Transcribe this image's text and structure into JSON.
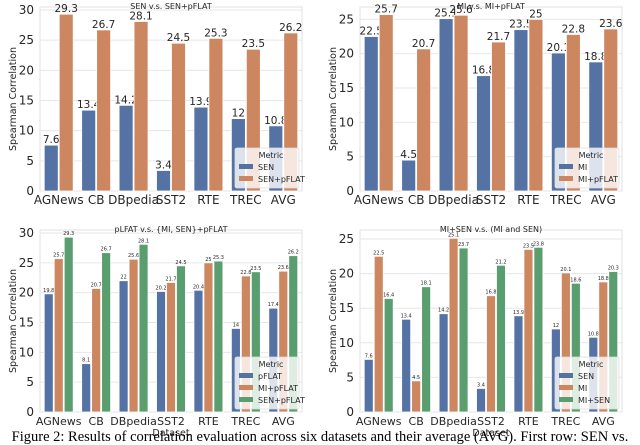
{
  "caption": "Figure 2: Results of correlation evaluation across six datasets and their average (AVG). First row: SEN vs.",
  "colors": {
    "blue": "#5572a5",
    "orange": "#cc8660",
    "green": "#5a9e6f",
    "grid": "#e6e6e6",
    "frame": "#e0e0e0"
  },
  "chart_data": [
    {
      "type": "bar",
      "title": "SEN v.s. SEN+pFLAT",
      "xlabel": "",
      "ylabel": "Spearman Correlation",
      "categories": [
        "AGNews",
        "CB",
        "DBpedia",
        "SST2",
        "RTE",
        "TREC",
        "AVG"
      ],
      "ylim": [
        0,
        30.5
      ],
      "yticks": [
        0,
        5,
        10,
        15,
        20,
        25,
        30
      ],
      "grid": true,
      "legend": {
        "title": "Metric",
        "position": "lower-right"
      },
      "series": [
        {
          "name": "SEN",
          "color": "#5572a5",
          "values": [
            7.6,
            13.4,
            14.2,
            3.4,
            13.9,
            12,
            10.8
          ]
        },
        {
          "name": "SEN+pFLAT",
          "color": "#cc8660",
          "values": [
            29.3,
            26.7,
            28.1,
            24.5,
            25.3,
            23.5,
            26.2
          ]
        }
      ]
    },
    {
      "type": "bar",
      "title": "MI v.s. MI+pFLAT",
      "xlabel": "",
      "ylabel": "Spearman Correlation",
      "categories": [
        "AGNews",
        "CB",
        "DBpedia",
        "SST2",
        "RTE",
        "TREC",
        "AVG"
      ],
      "ylim": [
        0,
        26.8
      ],
      "yticks": [
        0,
        5,
        10,
        15,
        20,
        25
      ],
      "grid": true,
      "legend": {
        "title": "Metric",
        "position": "lower-right"
      },
      "series": [
        {
          "name": "MI",
          "color": "#5572a5",
          "values": [
            22.5,
            4.5,
            25.1,
            16.8,
            23.5,
            20.1,
            18.8
          ]
        },
        {
          "name": "MI+pFLAT",
          "color": "#cc8660",
          "values": [
            25.7,
            20.7,
            25.6,
            21.7,
            25,
            22.8,
            23.6
          ]
        }
      ]
    },
    {
      "type": "bar",
      "title": "pLFAT v.s. {MI, SEN}+pFLAT",
      "xlabel": "Dataset",
      "ylabel": "Spearman Correlation",
      "categories": [
        "AGNews",
        "CB",
        "DBpedia",
        "SST2",
        "RTE",
        "TREC",
        "AVG"
      ],
      "ylim": [
        0,
        30.5
      ],
      "yticks": [
        0,
        5,
        10,
        15,
        20,
        25,
        30
      ],
      "grid": true,
      "legend": {
        "title": "Metric",
        "position": "lower-right"
      },
      "series": [
        {
          "name": "pFLAT",
          "color": "#5572a5",
          "values": [
            19.8,
            8.1,
            22,
            20.2,
            20.4,
            14,
            17.4
          ]
        },
        {
          "name": "MI+pFLAT",
          "color": "#cc8660",
          "values": [
            25.7,
            20.7,
            25.6,
            21.7,
            25,
            22.8,
            23.6
          ]
        },
        {
          "name": "SEN+pFLAT",
          "color": "#5a9e6f",
          "values": [
            29.3,
            26.7,
            28.1,
            24.5,
            25.3,
            23.5,
            26.2
          ]
        }
      ]
    },
    {
      "type": "bar",
      "title": "MI+SEN v.s. (MI and SEN)",
      "xlabel": "Dataset",
      "ylabel": "Spearman Correlation",
      "categories": [
        "AGNews",
        "CB",
        "DBpedia",
        "SST2",
        "RTE",
        "TREC",
        "AVG"
      ],
      "ylim": [
        0,
        26.3
      ],
      "yticks": [
        0,
        5,
        10,
        15,
        20,
        25
      ],
      "grid": true,
      "legend": {
        "title": "Metric",
        "position": "lower-right"
      },
      "series": [
        {
          "name": "SEN",
          "color": "#5572a5",
          "values": [
            7.6,
            13.4,
            14.2,
            3.4,
            13.9,
            12,
            10.8
          ]
        },
        {
          "name": "MI",
          "color": "#cc8660",
          "values": [
            22.5,
            4.5,
            25.1,
            16.8,
            23.5,
            20.1,
            18.8
          ]
        },
        {
          "name": "MI+SEN",
          "color": "#5a9e6f",
          "values": [
            16.4,
            18.1,
            23.7,
            21.2,
            23.8,
            18.6,
            20.3
          ]
        }
      ]
    }
  ]
}
